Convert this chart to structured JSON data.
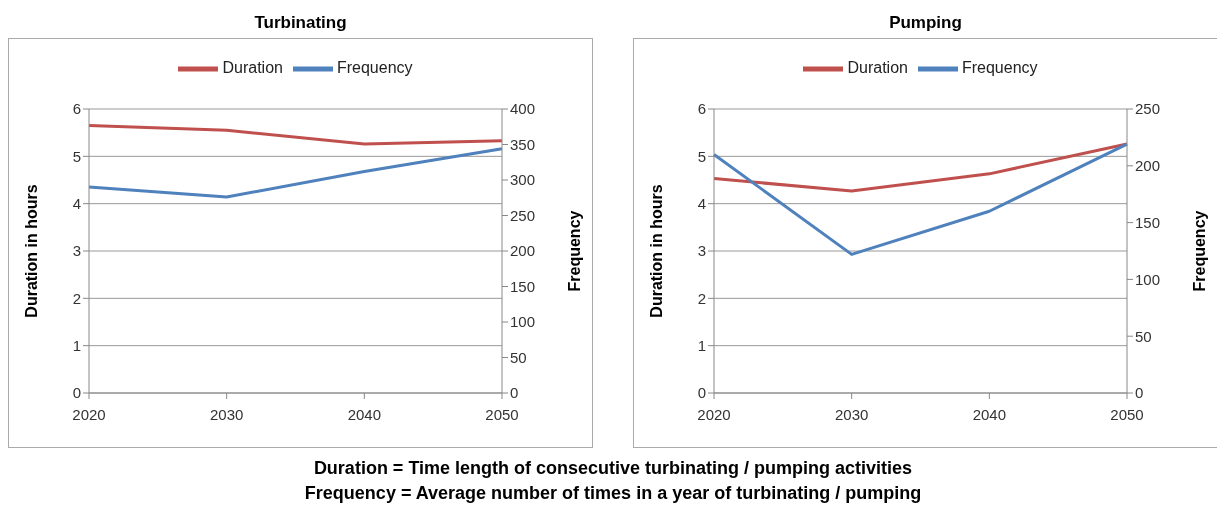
{
  "chart_data": [
    {
      "type": "line",
      "title": "Turbinating",
      "categories": [
        "2020",
        "2030",
        "2040",
        "2050"
      ],
      "ylabel": "Duration in hours",
      "y2label": "Frequency",
      "ylim": [
        0,
        6
      ],
      "yticks": [
        0,
        1,
        2,
        3,
        4,
        5,
        6
      ],
      "y2lim": [
        0,
        400
      ],
      "y2ticks": [
        0,
        50,
        100,
        150,
        200,
        250,
        300,
        350,
        400
      ],
      "grid": "y",
      "legend": "top",
      "series": [
        {
          "name": "Duration",
          "color": "#c0504d",
          "values": [
            5.65,
            5.55,
            5.26,
            5.33
          ]
        },
        {
          "name": "Frequency",
          "color": "#4f81bd",
          "axis": "y2",
          "values": [
            290,
            276,
            312,
            344
          ]
        }
      ],
      "annotations": [
        "Duration = Time length of consecutive turbinating / pumping activities",
        "Frequency = Average number of times in a year of turbinating / pumping"
      ]
    },
    {
      "type": "line",
      "title": "Pumping",
      "categories": [
        "2020",
        "2030",
        "2040",
        "2050"
      ],
      "ylabel": "Duration in hours",
      "y2label": "Frequency",
      "ylim": [
        0,
        6
      ],
      "yticks": [
        0,
        1,
        2,
        3,
        4,
        5,
        6
      ],
      "y2lim": [
        0,
        250
      ],
      "y2ticks": [
        0,
        50,
        100,
        150,
        200,
        250
      ],
      "grid": "y",
      "legend": "top",
      "series": [
        {
          "name": "Duration",
          "color": "#c0504d",
          "values": [
            4.53,
            4.27,
            4.63,
            5.26
          ]
        },
        {
          "name": "Frequency",
          "color": "#4f81bd",
          "axis": "y2",
          "values": [
            210,
            122,
            160,
            219
          ]
        }
      ]
    }
  ]
}
